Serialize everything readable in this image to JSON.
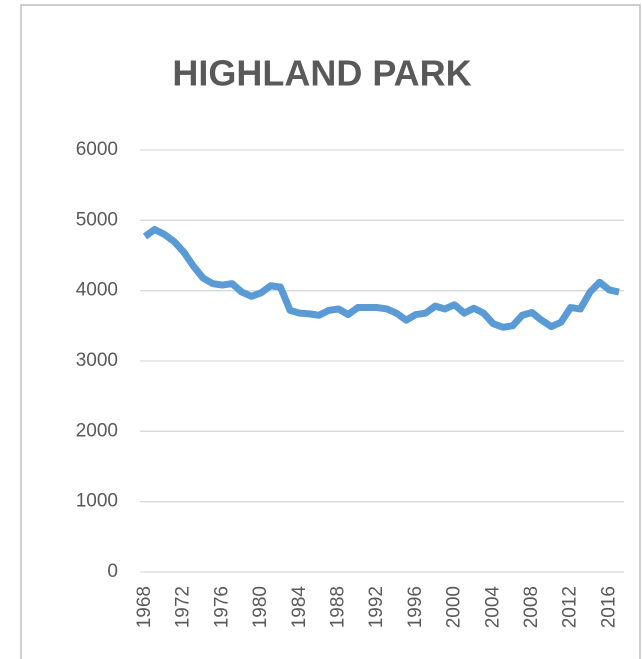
{
  "chart_data": {
    "type": "line",
    "title": "HIGHLAND PARK",
    "x": [
      1968,
      1969,
      1970,
      1971,
      1972,
      1973,
      1974,
      1975,
      1976,
      1977,
      1978,
      1979,
      1980,
      1981,
      1982,
      1983,
      1984,
      1985,
      1986,
      1987,
      1988,
      1989,
      1990,
      1991,
      1992,
      1993,
      1994,
      1995,
      1996,
      1997,
      1998,
      1999,
      2000,
      2001,
      2002,
      2003,
      2004,
      2005,
      2006,
      2007,
      2008,
      2009,
      2010,
      2011,
      2012,
      2013,
      2014,
      2015,
      2016,
      2017
    ],
    "series": [
      {
        "color": "#5b9bd5",
        "values": [
          4770,
          4870,
          4800,
          4700,
          4550,
          4350,
          4180,
          4100,
          4080,
          4100,
          3980,
          3920,
          3970,
          4070,
          4050,
          3720,
          3680,
          3670,
          3650,
          3720,
          3740,
          3660,
          3760,
          3760,
          3760,
          3740,
          3680,
          3580,
          3660,
          3680,
          3780,
          3740,
          3800,
          3680,
          3750,
          3680,
          3530,
          3480,
          3500,
          3650,
          3690,
          3580,
          3490,
          3550,
          3760,
          3740,
          3980,
          4120,
          4010,
          3980
        ]
      }
    ],
    "xlim": [
      1968,
      2017
    ],
    "xticks": [
      1968,
      1972,
      1976,
      1980,
      1984,
      1988,
      1992,
      1996,
      2000,
      2004,
      2008,
      2012,
      2016
    ],
    "ylim": [
      0,
      6000
    ],
    "yticks": [
      0,
      1000,
      2000,
      3000,
      4000,
      5000,
      6000
    ],
    "grid": true
  }
}
